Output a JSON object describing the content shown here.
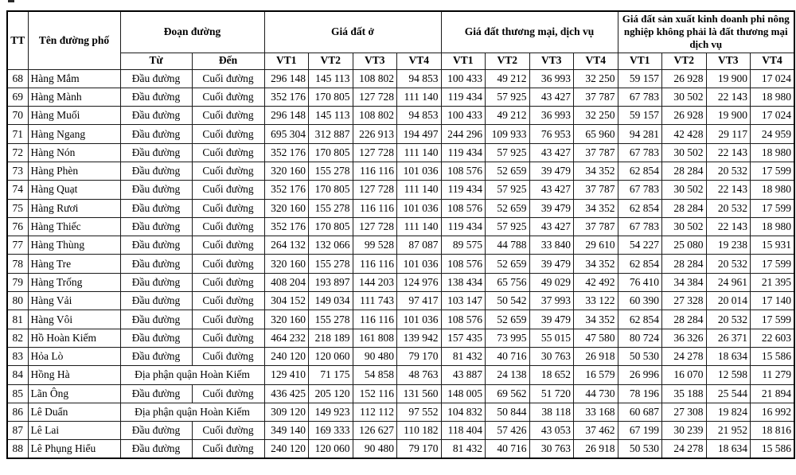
{
  "table": {
    "header": {
      "tt": "TT",
      "street": "Tên đường phố",
      "segment": "Đoạn đường",
      "from": "Từ",
      "to": "Đến",
      "group_residential": "Giá đất ở",
      "group_commercial": "Giá đất thương mại, dịch vụ",
      "group_production": "Giá đất sản xuất kinh doanh phi nông nghiệp không phải là đất thương mại dịch vụ",
      "vt": [
        "VT1",
        "VT2",
        "VT3",
        "VT4"
      ]
    },
    "rows": [
      {
        "tt": "68",
        "street": "Hàng Mắm",
        "from": "Đầu đường",
        "to": "Cuối đường",
        "values": [
          "296 148",
          "145 113",
          "108 802",
          "94 853",
          "100 433",
          "49 212",
          "36 993",
          "32 250",
          "59 157",
          "26 928",
          "19 900",
          "17 024"
        ]
      },
      {
        "tt": "69",
        "street": "Hàng Mành",
        "from": "Đầu đường",
        "to": "Cuối đường",
        "values": [
          "352 176",
          "170 805",
          "127 728",
          "111 140",
          "119 434",
          "57 925",
          "43 427",
          "37 787",
          "67 783",
          "30 502",
          "22 143",
          "18 980"
        ]
      },
      {
        "tt": "70",
        "street": "Hàng Muối",
        "from": "Đầu đường",
        "to": "Cuối đường",
        "values": [
          "296 148",
          "145 113",
          "108 802",
          "94 853",
          "100 433",
          "49 212",
          "36 993",
          "32 250",
          "59 157",
          "26 928",
          "19 900",
          "17 024"
        ]
      },
      {
        "tt": "71",
        "street": "Hàng Ngang",
        "from": "Đầu đường",
        "to": "Cuối đường",
        "values": [
          "695 304",
          "312 887",
          "226 913",
          "194 497",
          "244 296",
          "109 933",
          "76 953",
          "65 960",
          "94 281",
          "42 428",
          "29 117",
          "24 959"
        ]
      },
      {
        "tt": "72",
        "street": "Hàng Nón",
        "from": "Đầu đường",
        "to": "Cuối đường",
        "values": [
          "352 176",
          "170 805",
          "127 728",
          "111 140",
          "119 434",
          "57 925",
          "43 427",
          "37 787",
          "67 783",
          "30 502",
          "22 143",
          "18 980"
        ]
      },
      {
        "tt": "73",
        "street": "Hàng Phèn",
        "from": "Đầu đường",
        "to": "Cuối đường",
        "values": [
          "320 160",
          "155 278",
          "116 116",
          "101 036",
          "108 576",
          "52 659",
          "39 479",
          "34 352",
          "62 854",
          "28 284",
          "20 532",
          "17 599"
        ]
      },
      {
        "tt": "74",
        "street": "Hàng Quạt",
        "from": "Đầu đường",
        "to": "Cuối đường",
        "values": [
          "352 176",
          "170 805",
          "127 728",
          "111 140",
          "119 434",
          "57 925",
          "43 427",
          "37 787",
          "67 783",
          "30 502",
          "22 143",
          "18 980"
        ]
      },
      {
        "tt": "75",
        "street": "Hàng Rươi",
        "from": "Đầu đường",
        "to": "Cuối đường",
        "values": [
          "320 160",
          "155 278",
          "116 116",
          "101 036",
          "108 576",
          "52 659",
          "39 479",
          "34 352",
          "62 854",
          "28 284",
          "20 532",
          "17 599"
        ]
      },
      {
        "tt": "76",
        "street": "Hàng Thiếc",
        "from": "Đầu đường",
        "to": "Cuối đường",
        "values": [
          "352 176",
          "170 805",
          "127 728",
          "111 140",
          "119 434",
          "57 925",
          "43 427",
          "37 787",
          "67 783",
          "30 502",
          "22 143",
          "18 980"
        ]
      },
      {
        "tt": "77",
        "street": "Hàng Thùng",
        "from": "Đầu đường",
        "to": "Cuối đường",
        "values": [
          "264 132",
          "132 066",
          "99 528",
          "87 087",
          "89 575",
          "44 788",
          "33 840",
          "29 610",
          "54 227",
          "25 080",
          "19 238",
          "15 931"
        ]
      },
      {
        "tt": "78",
        "street": "Hàng Tre",
        "from": "Đầu đường",
        "to": "Cuối đường",
        "values": [
          "320 160",
          "155 278",
          "116 116",
          "101 036",
          "108 576",
          "52 659",
          "39 479",
          "34 352",
          "62 854",
          "28 284",
          "20 532",
          "17 599"
        ]
      },
      {
        "tt": "79",
        "street": "Hàng Trống",
        "from": "Đầu đường",
        "to": "Cuối đường",
        "values": [
          "408 204",
          "193 897",
          "144 203",
          "124 976",
          "138 434",
          "65 756",
          "49 029",
          "42 492",
          "76 410",
          "34 384",
          "24 961",
          "21 395"
        ]
      },
      {
        "tt": "80",
        "street": "Hàng Vải",
        "from": "Đầu đường",
        "to": "Cuối đường",
        "values": [
          "304 152",
          "149 034",
          "111 743",
          "97 417",
          "103 147",
          "50 542",
          "37 993",
          "33 122",
          "60 390",
          "27 328",
          "20 014",
          "17 140"
        ]
      },
      {
        "tt": "81",
        "street": "Hàng Vôi",
        "from": "Đầu đường",
        "to": "Cuối đường",
        "values": [
          "320 160",
          "155 278",
          "116 116",
          "101 036",
          "108 576",
          "52 659",
          "39 479",
          "34 352",
          "62 854",
          "28 284",
          "20 532",
          "17 599"
        ]
      },
      {
        "tt": "82",
        "street": "Hồ Hoàn Kiếm",
        "from": "Đầu đường",
        "to": "Cuối đường",
        "values": [
          "464 232",
          "218 189",
          "161 808",
          "139 942",
          "157 435",
          "73 995",
          "55 015",
          "47 580",
          "80 724",
          "36 326",
          "26 371",
          "22 603"
        ]
      },
      {
        "tt": "83",
        "street": "Hỏa Lò",
        "from": "Đầu đường",
        "to": "Cuối đường",
        "values": [
          "240 120",
          "120 060",
          "90 480",
          "79 170",
          "81 432",
          "40 716",
          "30 763",
          "26 918",
          "50 530",
          "24 278",
          "18 634",
          "15 586"
        ]
      },
      {
        "tt": "84",
        "street": "Hồng Hà",
        "merged_segment": "Địa phận quận Hoàn Kiếm",
        "values": [
          "129 410",
          "71 175",
          "54 858",
          "48 763",
          "43 887",
          "24 138",
          "18 652",
          "16 579",
          "26 996",
          "16 070",
          "12 598",
          "11 279"
        ]
      },
      {
        "tt": "85",
        "street": "Lãn Ông",
        "from": "Đầu đường",
        "to": "Cuối đường",
        "values": [
          "436 425",
          "205 120",
          "152 116",
          "131 560",
          "148 005",
          "69 562",
          "51 720",
          "44 730",
          "78 196",
          "35 188",
          "25 544",
          "21 894"
        ]
      },
      {
        "tt": "86",
        "street": "Lê Duẩn",
        "merged_segment": "Địa phận quận Hoàn Kiếm",
        "values": [
          "309 120",
          "149 923",
          "112 112",
          "97 552",
          "104 832",
          "50 844",
          "38 118",
          "33 168",
          "60 687",
          "27 308",
          "19 824",
          "16 992"
        ]
      },
      {
        "tt": "87",
        "street": "Lê Lai",
        "from": "Đầu đường",
        "to": "Cuối đường",
        "values": [
          "349 140",
          "169 333",
          "126 627",
          "110 182",
          "118 404",
          "57 426",
          "43 053",
          "37 462",
          "67 199",
          "30 239",
          "21 952",
          "18 816"
        ]
      },
      {
        "tt": "88",
        "street": "Lê Phụng Hiểu",
        "from": "Đầu đường",
        "to": "Cuối đường",
        "values": [
          "240 120",
          "120 060",
          "90 480",
          "79 170",
          "81 432",
          "40 716",
          "30 763",
          "26 918",
          "50 530",
          "24 278",
          "18 634",
          "15 586"
        ]
      }
    ]
  }
}
